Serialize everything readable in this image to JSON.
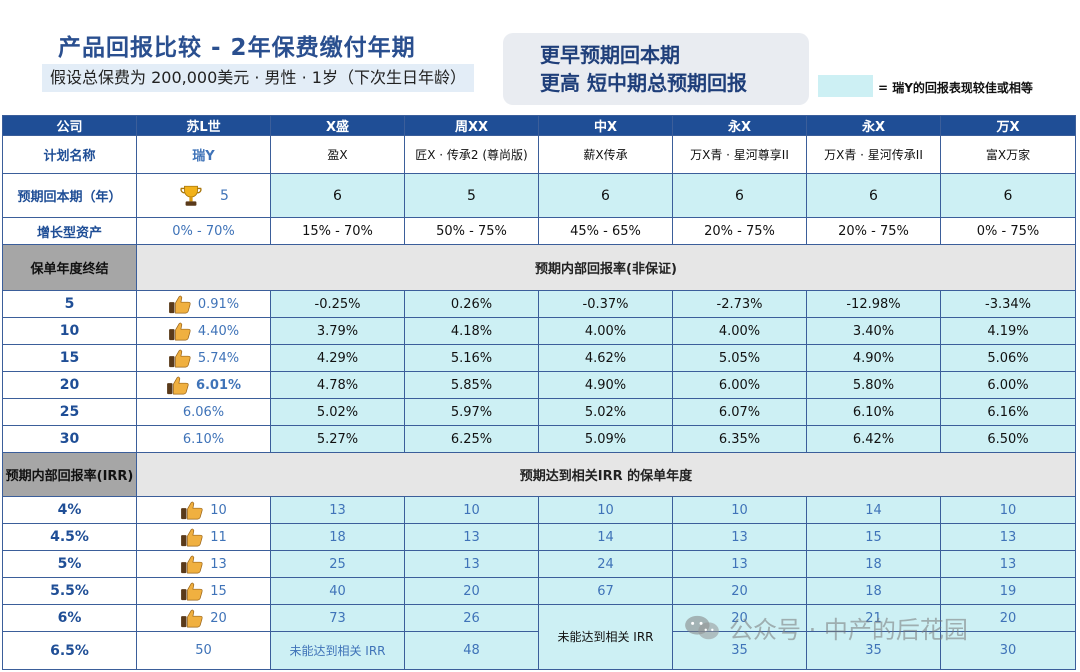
{
  "title": "产品回报比较 - 2年保费缴付年期",
  "subtitle": "假设总保费为 200,000美元 · 男性 · 1岁（下次生日年龄）",
  "callout": {
    "line1": "更早预期回本期",
    "line2": "更高 短中期总预期回报"
  },
  "legend": {
    "text": "= 瑞Y的回报表现较佳或相等",
    "color": "#cdf0f4"
  },
  "columns": [
    "公司",
    "苏L世",
    "X盛",
    "周XX",
    "中X",
    "永X",
    "永X",
    "万X"
  ],
  "plan_label": "计划名称",
  "plans": [
    "瑞Y",
    "盈X",
    "匠X · 传承2 (尊尚版)",
    "薪X传承",
    "万X青 · 星河尊享II",
    "万X青 · 星河传承II",
    "富X万家"
  ],
  "breakeven_label": "预期回本期（年）",
  "breakeven": [
    "5",
    "6",
    "5",
    "6",
    "6",
    "6",
    "6"
  ],
  "growth_label": "增长型资产",
  "growth": [
    "0% - 70%",
    "15% - 70%",
    "50% - 75%",
    "45% - 65%",
    "20% - 75%",
    "20% - 75%",
    "0% - 75%"
  ],
  "section1": {
    "left": "保单年度终结",
    "right": "预期内部回报率(非保证)"
  },
  "irr_rows": [
    {
      "year": "5",
      "values": [
        "0.91%",
        "-0.25%",
        "0.26%",
        "-0.37%",
        "-2.73%",
        "-12.98%",
        "-3.34%"
      ]
    },
    {
      "year": "10",
      "values": [
        "4.40%",
        "3.79%",
        "4.18%",
        "4.00%",
        "4.00%",
        "3.40%",
        "4.19%"
      ]
    },
    {
      "year": "15",
      "values": [
        "5.74%",
        "4.29%",
        "5.16%",
        "4.62%",
        "5.05%",
        "4.90%",
        "5.06%"
      ]
    },
    {
      "year": "20",
      "values": [
        "6.01%",
        "4.78%",
        "5.85%",
        "4.90%",
        "6.00%",
        "5.80%",
        "6.00%"
      ]
    },
    {
      "year": "25",
      "values": [
        "6.06%",
        "5.02%",
        "5.97%",
        "5.02%",
        "6.07%",
        "6.10%",
        "6.16%"
      ]
    },
    {
      "year": "30",
      "values": [
        "6.10%",
        "5.27%",
        "6.25%",
        "5.09%",
        "6.35%",
        "6.42%",
        "6.50%"
      ]
    }
  ],
  "section2": {
    "left": "预期内部回报率(IRR)",
    "right": "预期达到相关IRR 的保单年度"
  },
  "year_rows": [
    {
      "irr": "4%",
      "values": [
        "10",
        "13",
        "10",
        "10",
        "10",
        "14",
        "10"
      ]
    },
    {
      "irr": "4.5%",
      "values": [
        "11",
        "18",
        "13",
        "14",
        "13",
        "15",
        "13"
      ]
    },
    {
      "irr": "5%",
      "values": [
        "13",
        "25",
        "13",
        "24",
        "13",
        "18",
        "13"
      ]
    },
    {
      "irr": "5.5%",
      "values": [
        "15",
        "40",
        "20",
        "67",
        "20",
        "18",
        "19"
      ]
    },
    {
      "irr": "6%",
      "values": [
        "20",
        "73",
        "26",
        "",
        "20",
        "21",
        "20"
      ]
    },
    {
      "irr": "6.5%",
      "values": [
        "50",
        "未能达到相关 IRR",
        "48",
        "",
        "35",
        "35",
        "30"
      ]
    }
  ],
  "not_reached": "未能达到相关 IRR",
  "watermark": "公众号 · 中产的后花园"
}
